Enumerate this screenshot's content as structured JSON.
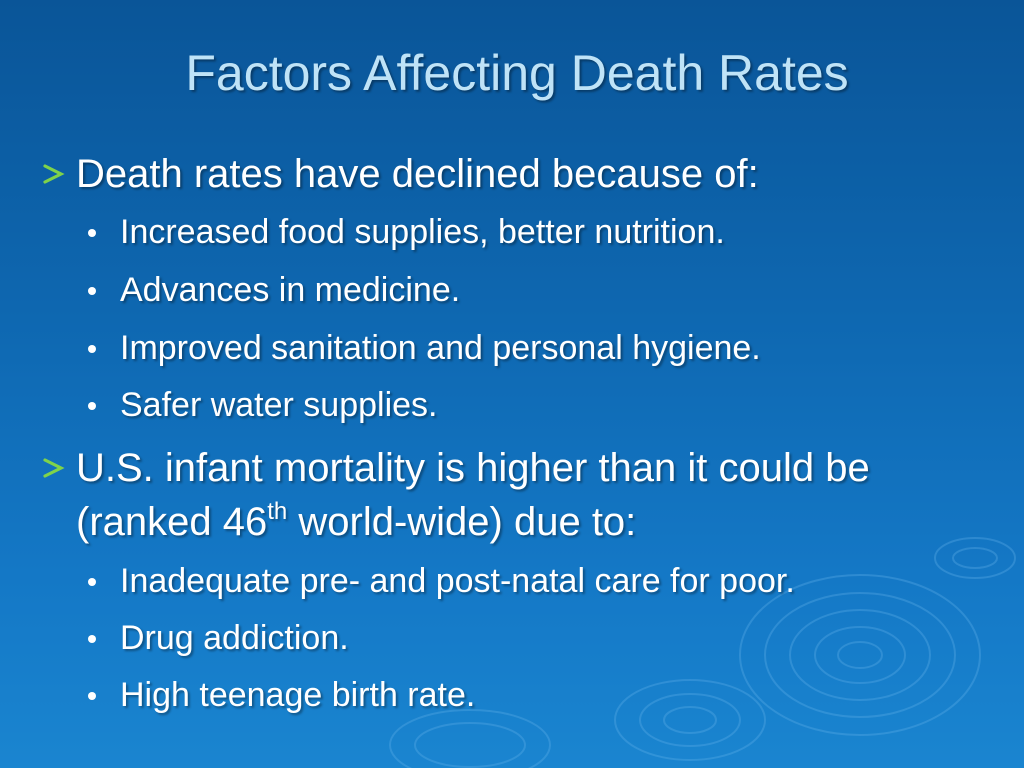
{
  "slide": {
    "title": "Factors Affecting Death Rates",
    "sections": [
      {
        "text": "Death rates have declined because of:",
        "items": [
          "Increased food supplies, better nutrition.",
          "Advances in medicine.",
          "Improved sanitation and personal hygiene.",
          "Safer water supplies."
        ]
      },
      {
        "line1": "U.S. infant mortality is higher than it could be",
        "line2_prefix": "(ranked 46",
        "line2_sup": "th",
        "line2_suffix": " world-wide) due to:",
        "items": [
          "Inadequate pre- and post-natal care for poor.",
          "Drug addiction.",
          "High teenage birth rate."
        ]
      }
    ]
  },
  "colors": {
    "background_top": "#0a5598",
    "background_bottom": "#1a85d0",
    "title": "#bfe3f7",
    "body_text": "#ffffff",
    "arrow_bullet": "#7fd34a"
  },
  "icons": {
    "level1_bullet": "arrow-bullet-icon",
    "level2_bullet": "dot-bullet-icon",
    "decoration": "water-ripples"
  }
}
